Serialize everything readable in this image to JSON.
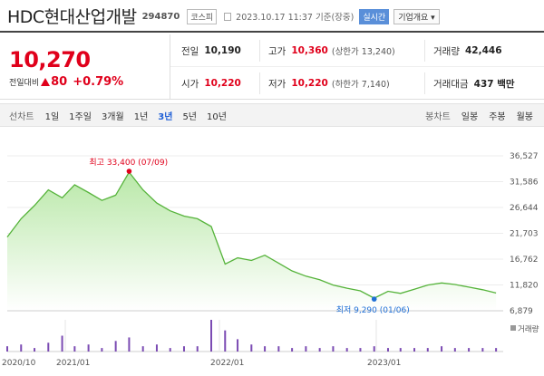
{
  "header": {
    "title": "HDC현대산업개발",
    "code": "294870",
    "market": "코스피",
    "datetime": "2023.10.17 11:37 기준(장중)",
    "realtime": "실시간",
    "company_info": "기업개요 ▾"
  },
  "quote": {
    "price": "10,270",
    "change_label": "전일대비",
    "change_value": "80",
    "change_percent": "+0.79%",
    "prev_close_label": "전일",
    "prev_close": "10,190",
    "high_label": "고가",
    "high": "10,360",
    "upper_limit": "(상한가 13,240)",
    "volume_label": "거래량",
    "volume": "42,446",
    "open_label": "시가",
    "open": "10,220",
    "low_label": "저가",
    "low": "10,220",
    "lower_limit": "(하한가 7,140)",
    "amount_label": "거래대금",
    "amount": "437 백만"
  },
  "tabs": {
    "line_label": "선차트",
    "periods": [
      "1일",
      "1주일",
      "3개월",
      "1년",
      "3년",
      "5년",
      "10년"
    ],
    "active_period": "3년",
    "candle_label": "봉차트",
    "candles": [
      "일봉",
      "주봉",
      "월봉"
    ]
  },
  "chart_data": {
    "type": "area",
    "y_ticks": [
      "36,527",
      "31,586",
      "26,644",
      "21,703",
      "16,762",
      "11,820",
      "6,879"
    ],
    "y_range": [
      6879,
      36527
    ],
    "x_ticks": [
      "2020/10",
      "2021/01",
      "2022/01",
      "2023/01"
    ],
    "high_annotation": "최고 33,400 (07/09)",
    "low_annotation": "최저 9,290 (01/06)",
    "volume_label": "거래량",
    "colors": {
      "line": "#55b33a",
      "fill_top": "#b9e8a8",
      "fill_bottom": "#ffffff",
      "volume": "#7b4bb3",
      "high": "#e0001b",
      "low": "#1f6fd6"
    },
    "series": [
      {
        "x": [
          "2020-10",
          "2020-11",
          "2020-12",
          "2021-01",
          "2021-02",
          "2021-03",
          "2021-04",
          "2021-05",
          "2021-06",
          "2021-07",
          "2021-08",
          "2021-09",
          "2021-10",
          "2021-11",
          "2021-12",
          "2022-01",
          "2022-02",
          "2022-03",
          "2022-04",
          "2022-05",
          "2022-06",
          "2022-07",
          "2022-08",
          "2022-09",
          "2022-10",
          "2022-11",
          "2022-12",
          "2023-01",
          "2023-02",
          "2023-03",
          "2023-04",
          "2023-05",
          "2023-06",
          "2023-07",
          "2023-08",
          "2023-09",
          "2023-10"
        ],
        "values": [
          21000,
          24500,
          27000,
          30000,
          28500,
          31000,
          29500,
          28000,
          29000,
          33400,
          30000,
          27500,
          26000,
          25000,
          24500,
          23000,
          15800,
          17000,
          16500,
          17500,
          16000,
          14500,
          13500,
          12800,
          11800,
          11200,
          10700,
          9290,
          10600,
          10200,
          11000,
          11800,
          12200,
          11900,
          11400,
          10900,
          10270
        ]
      }
    ],
    "volume": [
      3,
      4,
      2,
      5,
      9,
      3,
      4,
      2,
      6,
      8,
      3,
      4,
      2,
      3,
      3,
      18,
      12,
      7,
      4,
      3,
      3,
      2,
      3,
      2,
      3,
      2,
      2,
      3,
      2,
      2,
      2,
      2,
      3,
      2,
      2,
      2,
      2
    ]
  }
}
